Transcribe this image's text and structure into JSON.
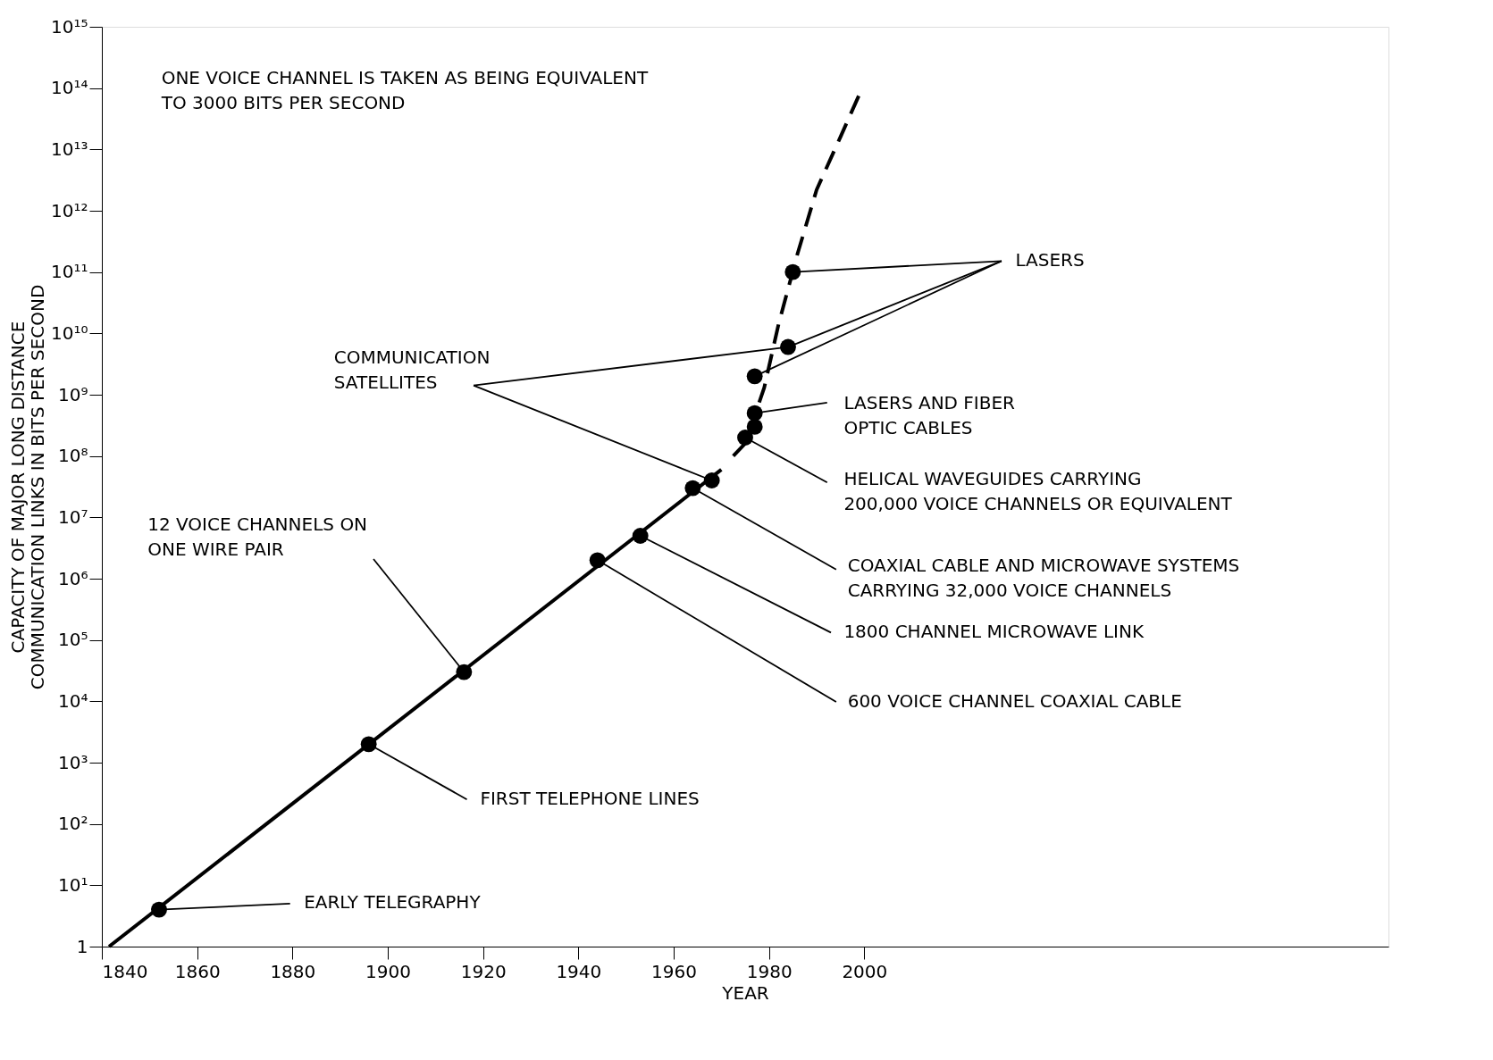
{
  "chart_data": {
    "type": "line",
    "xlabel": "YEAR",
    "ylabel": "CAPACITY OF MAJOR LONG DISTANCE\nCOMMUNICATION LINKS IN BITS PER SECOND",
    "xlim": [
      1840,
      2110
    ],
    "xticks": [
      1840,
      1860,
      1880,
      1900,
      1920,
      1940,
      1960,
      1980,
      2000
    ],
    "ylim": [
      1,
      1000000000000000.0
    ],
    "log": "y",
    "yticks": [
      1,
      {
        "value": 10,
        "label": "10¹"
      },
      {
        "value": 100,
        "label": "10²"
      },
      {
        "value": 1000,
        "label": "10³"
      },
      {
        "value": 10000,
        "label": "10⁴"
      },
      {
        "value": 100000,
        "label": "10⁵"
      },
      {
        "value": 1000000,
        "label": "10⁶"
      },
      {
        "value": 10000000,
        "label": "10⁷"
      },
      {
        "value": 100000000,
        "label": "10⁸"
      },
      {
        "value": 1000000000,
        "label": "10⁹"
      },
      {
        "value": 10000000000,
        "label": "10¹⁰"
      },
      {
        "value": 100000000000,
        "label": "10¹¹"
      },
      {
        "value": 1000000000000,
        "label": "10¹²"
      },
      {
        "value": 10000000000000,
        "label": "10¹³"
      },
      {
        "value": 100000000000000,
        "label": "10¹⁴"
      },
      {
        "value": 1000000000000000,
        "label": "10¹⁵"
      }
    ],
    "series": [
      {
        "color": "#000000",
        "line_style": "solid",
        "x": [
          1841.5,
          1970
        ],
        "values": [
          1,
          60000000
        ]
      },
      {
        "color": "#000000",
        "line_style": "dashed",
        "x": [
          1972.5,
          1975,
          1979,
          1982,
          1986,
          1990,
          1995,
          1999
        ],
        "values": [
          100000000,
          160000000,
          1300000000,
          14000000000,
          200000000000,
          2200000000000,
          16000000000000,
          80000000000000
        ]
      },
      {
        "type": "scatter",
        "color": "#000000",
        "marker": "circle",
        "x": [
          1852,
          1896,
          1916,
          1944,
          1953,
          1964,
          1968,
          1975,
          1977,
          1977,
          1977,
          1984,
          1985
        ],
        "values": [
          4,
          2000,
          30000,
          2000000,
          5000000,
          30000000,
          40000000,
          200000000,
          300000000,
          500000000,
          2000000000,
          6000000000,
          100000000000
        ]
      }
    ],
    "annotations": [
      "ONE VOICE CHANNEL IS TAKEN AS BEING EQUIVALENT\nTO 3000 BITS PER SECOND",
      {
        "text": "EARLY TELEGRAPHY",
        "x": 1852,
        "y": 4
      },
      {
        "text": "FIRST TELEPHONE LINES",
        "x": 1896,
        "y": 2000
      },
      {
        "text": "12 VOICE CHANNELS ON\nONE WIRE PAIR",
        "x": 1916,
        "y": 30000
      },
      {
        "text": "600 VOICE CHANNEL COAXIAL CABLE",
        "x": 1944,
        "y": 2000000
      },
      {
        "text": "1800 CHANNEL MICROWAVE LINK",
        "x": 1953,
        "y": 5000000
      },
      {
        "text": "COAXIAL CABLE AND MICROWAVE SYSTEMS\nCARRYING 32,000 VOICE CHANNELS",
        "x": 1964,
        "y": 30000000
      },
      {
        "text": "HELICAL WAVEGUIDES CARRYING\n200,000 VOICE CHANNELS OR EQUIVALENT",
        "x": 1975,
        "y": 200000000
      },
      {
        "text": "LASERS AND FIBER\nOPTIC CABLES",
        "x": 1977,
        "y": 500000000
      },
      {
        "text": "COMMUNICATION\nSATELLITES",
        "x": 1968,
        "y": 40000000
      },
      {
        "text": "LASERS",
        "x": 1985,
        "y": 100000000000
      }
    ]
  }
}
